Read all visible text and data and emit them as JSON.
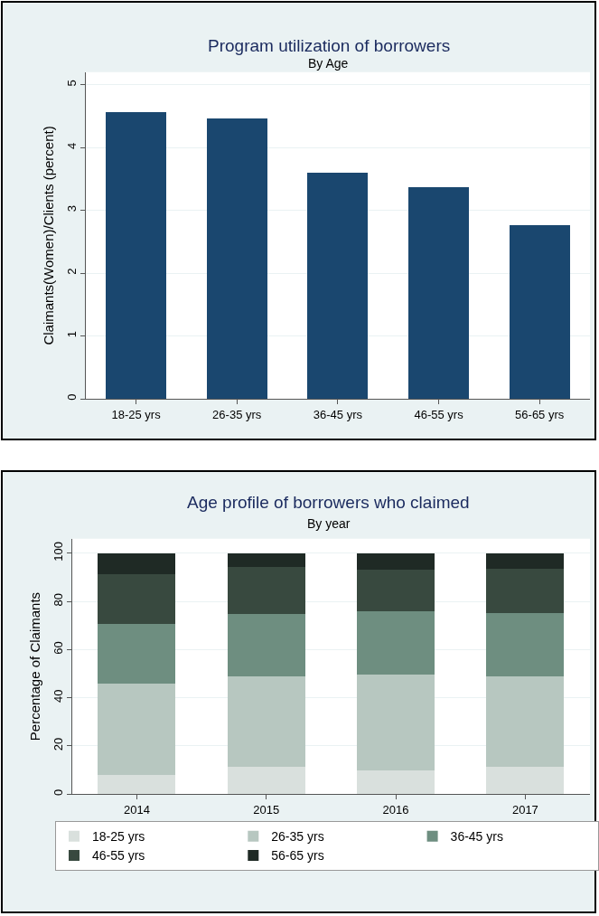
{
  "chart_data": [
    {
      "type": "bar",
      "title": "Program utilization of borrowers",
      "subtitle": "By Age",
      "ylabel": "Claimants(Women)/Clients (percent)",
      "categories": [
        "18-25 yrs",
        "26-35 yrs",
        "36-45 yrs",
        "46-55 yrs",
        "56-65 yrs"
      ],
      "values": [
        4.56,
        4.46,
        3.6,
        3.37,
        2.77
      ],
      "color": "#1a476f",
      "ylim": [
        0,
        5.2
      ],
      "yticks": [
        0,
        1,
        2,
        3,
        4,
        5
      ],
      "grid": "y"
    },
    {
      "type": "bar",
      "title": "Age profile of borrowers who claimed",
      "subtitle": "By year",
      "ylabel": "Percentage of Claimants",
      "categories": [
        "2014",
        "2015",
        "2016",
        "2017"
      ],
      "stacked": true,
      "series": [
        {
          "name": "18-25 yrs",
          "color": "#d9e0dd",
          "values": [
            8.1,
            11.2,
            10.0,
            11.2
          ]
        },
        {
          "name": "26-35 yrs",
          "color": "#b7c7c0",
          "values": [
            37.8,
            37.8,
            39.6,
            37.8
          ]
        },
        {
          "name": "36-45 yrs",
          "color": "#6e8e80",
          "values": [
            24.8,
            25.8,
            26.2,
            26.1
          ]
        },
        {
          "name": "46-55 yrs",
          "color": "#38493f",
          "values": [
            20.7,
            19.5,
            17.3,
            18.4
          ]
        },
        {
          "name": "56-65 yrs",
          "color": "#1f2a25",
          "values": [
            8.6,
            5.7,
            6.9,
            6.5
          ]
        }
      ],
      "ylim": [
        0,
        106
      ],
      "yticks": [
        0,
        20,
        40,
        60,
        80,
        100
      ],
      "grid": "y",
      "legend": "bottom"
    }
  ]
}
